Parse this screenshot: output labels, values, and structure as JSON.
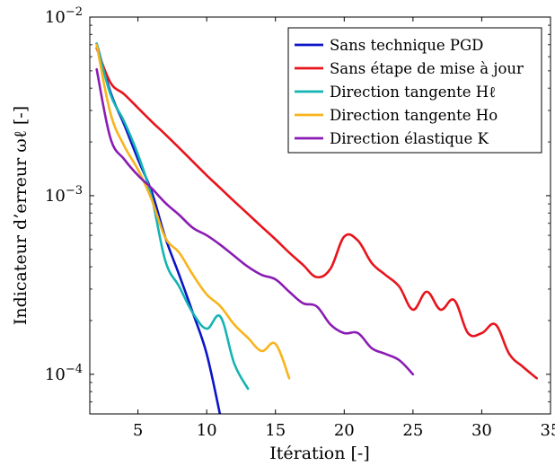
{
  "chart_data": {
    "type": "line",
    "xlabel": "Itération [-]",
    "ylabel": "Indicateur d’erreur ωℓ [-]",
    "xlim": [
      1.5,
      35
    ],
    "ylim": [
      6e-05,
      0.01
    ],
    "y_scale": "log",
    "grid": false,
    "legend_position": "top-right",
    "x_ticks": [
      5,
      10,
      15,
      20,
      25,
      30,
      35
    ],
    "x_tick_labels": [
      "5",
      "10",
      "15",
      "20",
      "25",
      "30",
      "35"
    ],
    "y_ticks": [
      0.01,
      0.001,
      0.0001
    ],
    "y_tick_labels": [
      {
        "base": "10",
        "exp": "−2"
      },
      {
        "base": "10",
        "exp": "−3"
      },
      {
        "base": "10",
        "exp": "−4"
      }
    ],
    "series": [
      {
        "name": "Sans technique PGD",
        "color": "#0a14c8",
        "x": [
          2,
          3,
          4,
          5,
          6,
          7,
          8,
          9,
          10,
          11
        ],
        "y": [
          0.0071,
          0.0038,
          0.0025,
          0.0016,
          0.00105,
          0.00058,
          0.00036,
          0.00022,
          0.00013,
          5.8e-05
        ]
      },
      {
        "name": "Sans étape de mise à jour",
        "color": "#e8141c",
        "x": [
          2,
          3,
          4,
          5,
          6,
          7,
          8,
          9,
          10,
          11,
          12,
          13,
          14,
          15,
          16,
          17,
          18,
          19,
          20,
          21,
          22,
          23,
          24,
          25,
          26,
          27,
          28,
          29,
          30,
          31,
          32,
          33,
          34
        ],
        "y": [
          0.0067,
          0.0043,
          0.0037,
          0.0031,
          0.0026,
          0.0022,
          0.00185,
          0.00155,
          0.0013,
          0.0011,
          0.00093,
          0.00079,
          0.00067,
          0.00057,
          0.00048,
          0.00041,
          0.00035,
          0.00039,
          0.00059,
          0.00056,
          0.00042,
          0.00036,
          0.00031,
          0.00023,
          0.00029,
          0.00023,
          0.00026,
          0.00017,
          0.00017,
          0.00019,
          0.00013,
          0.00011,
          9.5e-05
        ]
      },
      {
        "name": "Direction tangente Hℓ",
        "color": "#14b4b4",
        "x": [
          2,
          3,
          4,
          5,
          6,
          7,
          8,
          9,
          10,
          11,
          12,
          13
        ],
        "y": [
          0.0071,
          0.0037,
          0.0026,
          0.0017,
          0.00098,
          0.00043,
          0.00031,
          0.00022,
          0.00018,
          0.00021,
          0.000115,
          8.3e-05
        ]
      },
      {
        "name": "Direction tangente Ho",
        "color": "#f8b41c",
        "x": [
          2,
          3,
          4,
          5,
          6,
          7,
          8,
          9,
          10,
          11,
          12,
          13,
          14,
          15,
          16
        ],
        "y": [
          0.007,
          0.0029,
          0.0019,
          0.0014,
          0.00095,
          0.00058,
          0.00048,
          0.00036,
          0.00028,
          0.00024,
          0.00019,
          0.00016,
          0.000135,
          0.000148,
          9.5e-05
        ]
      },
      {
        "name": "Direction élastique K",
        "color": "#8a1cb4",
        "x": [
          2,
          3,
          4,
          5,
          6,
          7,
          8,
          9,
          10,
          11,
          12,
          13,
          14,
          15,
          16,
          17,
          18,
          19,
          20,
          21,
          22,
          23,
          24,
          25
        ],
        "y": [
          0.0051,
          0.0021,
          0.0016,
          0.0013,
          0.0011,
          0.00091,
          0.00078,
          0.00066,
          0.0006,
          0.00053,
          0.00046,
          0.0004,
          0.00036,
          0.00034,
          0.00029,
          0.00025,
          0.00024,
          0.00019,
          0.00017,
          0.00017,
          0.00014,
          0.00013,
          0.00012,
          0.0001
        ]
      }
    ]
  }
}
